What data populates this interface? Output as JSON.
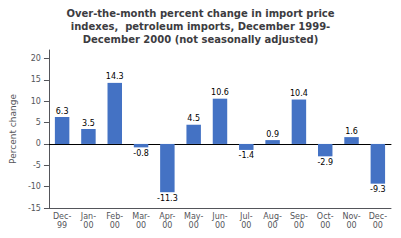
{
  "chart_data": {
    "type": "bar",
    "title": "Over-the-month percent change in import price\nindexes,  petroleum imports, December 1999-\nDecember 2000 (not seasonally adjusted)",
    "ylabel": "Percent change",
    "categories": [
      "Dec-\n99",
      "Jan-\n00",
      "Feb-\n00",
      "Mar-\n00",
      "Apr-\n00",
      "May-\n00",
      "Jun-\n00",
      "Jul-\n00",
      "Aug-\n00",
      "Sep-\n00",
      "Oct-\n00",
      "Nov-\n00",
      "Dec-\n00"
    ],
    "values": [
      6.3,
      3.5,
      14.3,
      -0.8,
      -11.3,
      4.5,
      10.6,
      -1.4,
      0.9,
      10.4,
      -2.9,
      1.6,
      -9.3
    ],
    "color": "#4472C4",
    "ylim": [
      -15,
      22
    ],
    "yticks": [
      -15,
      -10,
      -5,
      0,
      5,
      10,
      15,
      20
    ],
    "data_labels": true,
    "grid": false
  }
}
